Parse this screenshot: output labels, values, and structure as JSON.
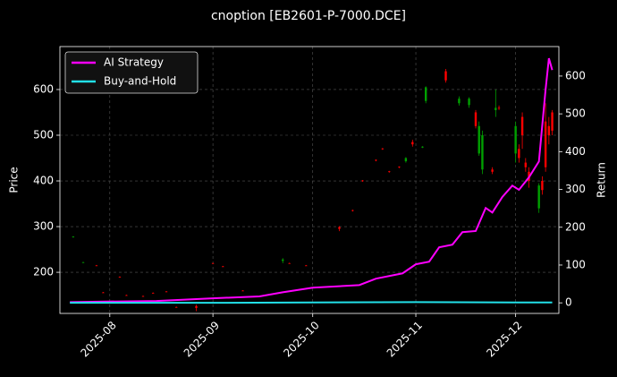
{
  "chart_data": {
    "type": "candlestick",
    "title": "cnoption [EB2601-P-7000.DCE]",
    "y_label": "Price",
    "y2_label": "Return",
    "up_color": "#ff0000",
    "down_color": "#00a000",
    "grid": true,
    "legend": "upper left",
    "x": [
      "2025-07-21",
      "2025-07-24",
      "2025-07-28",
      "2025-07-30",
      "2025-08-04",
      "2025-08-06",
      "2025-08-11",
      "2025-08-14",
      "2025-08-18",
      "2025-08-21",
      "2025-08-27",
      "2025-09-01",
      "2025-09-04",
      "2025-09-10",
      "2025-09-22",
      "2025-09-24",
      "2025-09-29",
      "2025-10-09",
      "2025-10-13",
      "2025-10-16",
      "2025-10-20",
      "2025-10-22",
      "2025-10-24",
      "2025-10-27",
      "2025-10-29",
      "2025-10-31",
      "2025-11-03",
      "2025-11-04",
      "2025-11-10",
      "2025-11-14",
      "2025-11-17",
      "2025-11-19",
      "2025-11-20",
      "2025-11-21",
      "2025-11-24",
      "2025-11-25",
      "2025-11-26",
      "2025-12-01",
      "2025-12-02",
      "2025-12-03",
      "2025-12-04",
      "2025-12-05",
      "2025-12-08",
      "2025-12-09",
      "2025-12-10",
      "2025-12-11",
      "2025-12-12"
    ],
    "open": [
      278,
      222,
      215,
      156,
      190,
      150,
      148,
      155,
      158,
      124,
      122,
      220,
      213,
      160,
      228,
      220,
      215,
      295,
      335,
      400,
      445,
      470,
      420,
      430,
      450,
      480,
      475,
      605,
      620,
      580,
      580,
      520,
      520,
      500,
      420,
      560,
      560,
      520,
      450,
      500,
      430,
      400,
      390,
      380,
      430,
      500,
      510
    ],
    "high": [
      279,
      223,
      216,
      157,
      191,
      151,
      149,
      156,
      159,
      125,
      129,
      221,
      214,
      161,
      231,
      221,
      216,
      301,
      337,
      402,
      447,
      472,
      422,
      432,
      452,
      490,
      476,
      607,
      645,
      585,
      583,
      555,
      530,
      510,
      430,
      600,
      565,
      530,
      480,
      550,
      450,
      430,
      395,
      410,
      570,
      540,
      555
    ],
    "low": [
      276,
      221,
      214,
      155,
      189,
      149,
      147,
      154,
      157,
      123,
      115,
      219,
      212,
      159,
      220,
      219,
      214,
      290,
      333,
      398,
      443,
      468,
      418,
      428,
      440,
      475,
      472,
      570,
      615,
      565,
      560,
      515,
      455,
      415,
      415,
      540,
      555,
      440,
      440,
      470,
      420,
      385,
      330,
      370,
      420,
      480,
      500
    ],
    "close": [
      277,
      221,
      215,
      156,
      190,
      150,
      148,
      155,
      158,
      124,
      126,
      220,
      213,
      160,
      225,
      220,
      215,
      299,
      336,
      401,
      446,
      471,
      421,
      431,
      443,
      485,
      473,
      575,
      640,
      570,
      566,
      550,
      460,
      425,
      425,
      555,
      560,
      460,
      470,
      540,
      440,
      420,
      340,
      400,
      530,
      520,
      550
    ],
    "series": [
      {
        "name": "AI Strategy",
        "color": "#ff00ff",
        "axis": "y2",
        "x": [
          "2025-07-20",
          "2025-08-15",
          "2025-09-01",
          "2025-09-15",
          "2025-09-22",
          "2025-10-01",
          "2025-10-15",
          "2025-10-20",
          "2025-10-28",
          "2025-11-01",
          "2025-11-05",
          "2025-11-08",
          "2025-11-12",
          "2025-11-15",
          "2025-11-19",
          "2025-11-22",
          "2025-11-24",
          "2025-11-27",
          "2025-11-30",
          "2025-12-02",
          "2025-12-05",
          "2025-12-08",
          "2025-12-10",
          "2025-12-11",
          "2025-12-12"
        ],
        "values": [
          2,
          5,
          12,
          17,
          28,
          40,
          47,
          64,
          78,
          102,
          109,
          147,
          154,
          187,
          190,
          251,
          239,
          280,
          310,
          299,
          332,
          374,
          564,
          647,
          616
        ]
      },
      {
        "name": "Buy-and-Hold",
        "color": "#22e0e8",
        "axis": "y2",
        "x": [
          "2025-07-20",
          "2025-09-01",
          "2025-10-01",
          "2025-11-01",
          "2025-12-01",
          "2025-12-12"
        ],
        "values": [
          0,
          0,
          1,
          2,
          1,
          1
        ]
      }
    ],
    "xlim": [
      "2025-07-17",
      "2025-12-14"
    ],
    "xticks": [
      {
        "value": "2025-08-01",
        "label": "2025-08"
      },
      {
        "value": "2025-09-01",
        "label": "2025-09"
      },
      {
        "value": "2025-10-01",
        "label": "2025-10"
      },
      {
        "value": "2025-11-01",
        "label": "2025-11"
      },
      {
        "value": "2025-12-01",
        "label": "2025-12"
      }
    ],
    "ylim": [
      110,
      694
    ],
    "yticks": [
      200,
      300,
      400,
      500,
      600
    ],
    "y2lim": [
      -28,
      678
    ],
    "y2ticks": [
      0,
      100,
      200,
      300,
      400,
      500,
      600
    ]
  }
}
